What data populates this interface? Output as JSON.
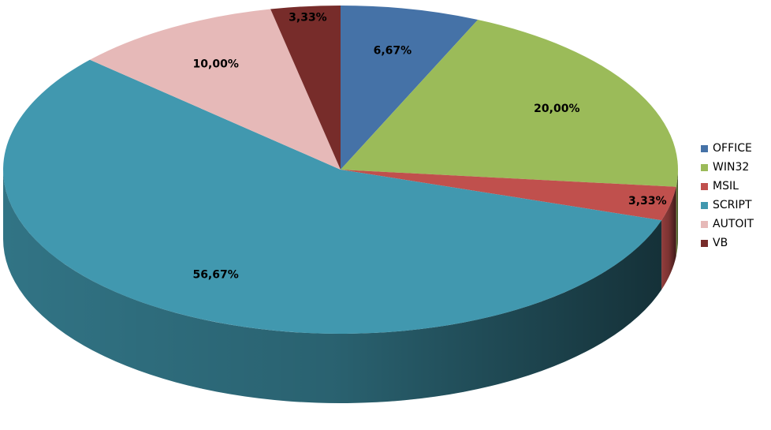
{
  "chart_data": {
    "type": "pie",
    "style": "3d",
    "legend_position": "right",
    "slices": [
      {
        "name": "OFFICE",
        "value": 6.67,
        "label": "6,67%",
        "color": "#4572A7"
      },
      {
        "name": "WIN32",
        "value": 20.0,
        "label": "20,00%",
        "color": "#9BBB59"
      },
      {
        "name": "MSIL",
        "value": 3.33,
        "label": "3,33%",
        "color": "#C0504D"
      },
      {
        "name": "SCRIPT",
        "value": 56.67,
        "label": "56,67%",
        "color": "#4198AF"
      },
      {
        "name": "AUTOIT",
        "value": 10.0,
        "label": "10,00%",
        "color": "#E6B9B8"
      },
      {
        "name": "VB",
        "value": 3.33,
        "label": "3,33%",
        "color": "#772C2A"
      }
    ]
  }
}
